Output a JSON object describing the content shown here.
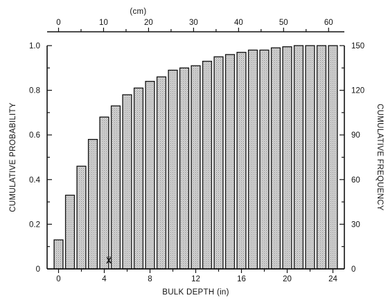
{
  "chart_data": {
    "type": "bar",
    "title": "",
    "xlabel": "BULK DEPTH (in)",
    "x2label": "(cm)",
    "ylabel": "CUMULATIVE PROBABILITY",
    "y2label": "CUMULATIVE FREQUENCY",
    "x_categories": [
      0,
      1,
      2,
      3,
      4,
      5,
      6,
      7,
      8,
      9,
      10,
      11,
      12,
      13,
      14,
      15,
      16,
      17,
      18,
      19,
      20,
      21,
      22,
      23,
      24
    ],
    "values": [
      0.13,
      0.33,
      0.46,
      0.58,
      0.68,
      0.73,
      0.78,
      0.81,
      0.84,
      0.86,
      0.89,
      0.9,
      0.91,
      0.93,
      0.95,
      0.96,
      0.97,
      0.98,
      0.98,
      0.99,
      0.995,
      1.0,
      1.0,
      1.0,
      1.0
    ],
    "xlim": [
      -1,
      25
    ],
    "ylim": [
      0,
      1.0
    ],
    "y2lim": [
      0,
      150
    ],
    "x_ticks": [
      "0",
      "4",
      "8",
      "12",
      "16",
      "20",
      "24"
    ],
    "x2_ticks": [
      "0",
      "10",
      "20",
      "30",
      "40",
      "50",
      "60"
    ],
    "y_ticks": [
      "0",
      "0.2",
      "0.4",
      "0.6",
      "0.8",
      "1.0"
    ],
    "y2_ticks": [
      "0",
      "30",
      "60",
      "90",
      "120",
      "150"
    ],
    "mean_marker": {
      "label": "X̅",
      "x": 4.4
    },
    "grid": false,
    "bar_fill": "#d4d4d4",
    "bar_stroke": "#111111"
  }
}
